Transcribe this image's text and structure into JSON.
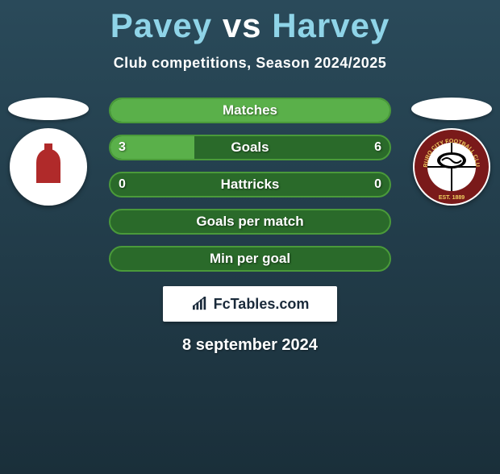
{
  "header": {
    "player1": "Pavey",
    "vs": "vs",
    "player2": "Harvey",
    "subtitle": "Club competitions, Season 2024/2025",
    "title_color_players": "#8fd4e8",
    "title_color_vs": "#ffffff",
    "title_fontsize": 42,
    "subtitle_fontsize": 18
  },
  "crests": {
    "left": {
      "name": "club-crest-left",
      "bg": "#ffffff",
      "shape_fill": "#b02a2a"
    },
    "right": {
      "name": "club-crest-right",
      "bg": "#ffffff",
      "ring_outer": "#7a1a1a",
      "ring_text": "#f0d060",
      "center_bg": "#ffffff"
    }
  },
  "bars": {
    "border_color": "#4a9a3a",
    "empty_color": "#2a6a2a",
    "fill_color": "#5ab04a",
    "text_color": "#ffffff",
    "label_fontsize": 17,
    "items": [
      {
        "label": "Matches",
        "left_val": "",
        "right_val": "",
        "left_pct": 100,
        "right_pct": 0
      },
      {
        "label": "Goals",
        "left_val": "3",
        "right_val": "6",
        "left_pct": 30,
        "right_pct": 0
      },
      {
        "label": "Hattricks",
        "left_val": "0",
        "right_val": "0",
        "left_pct": 0,
        "right_pct": 0
      },
      {
        "label": "Goals per match",
        "left_val": "",
        "right_val": "",
        "left_pct": 0,
        "right_pct": 0
      },
      {
        "label": "Min per goal",
        "left_val": "",
        "right_val": "",
        "left_pct": 0,
        "right_pct": 0
      }
    ]
  },
  "branding": {
    "text": "FcTables.com",
    "text_color": "#1a2a3a",
    "box_bg": "#ffffff",
    "fontsize": 18
  },
  "footer": {
    "date": "8 september 2024",
    "fontsize": 20,
    "color": "#ffffff"
  },
  "background": {
    "gradient_top": "#2a4a5a",
    "gradient_bottom": "#1a2f3a"
  }
}
